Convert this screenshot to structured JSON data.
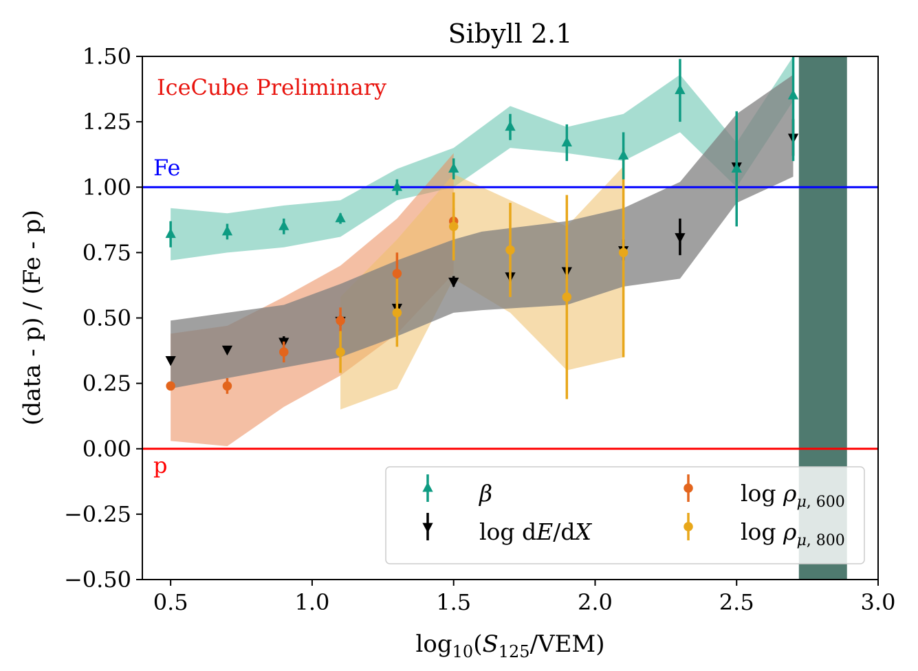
{
  "chart_data": {
    "type": "scatter",
    "title": "Sibyll 2.1",
    "xlabel": "log10(S125/VEM)",
    "ylabel": "(data - p) / (Fe - p)",
    "xlim": [
      0.4,
      3.0
    ],
    "ylim": [
      -0.5,
      1.5
    ],
    "xticks": [
      "0.5",
      "1.0",
      "1.5",
      "2.0",
      "2.5",
      "3.0"
    ],
    "yticks": [
      "1.50",
      "1.25",
      "1.00",
      "0.75",
      "0.50",
      "0.25",
      "0.00",
      "−0.25",
      "−0.50"
    ],
    "ytick_values": [
      1.5,
      1.25,
      1.0,
      0.75,
      0.5,
      0.25,
      0.0,
      -0.25,
      -0.5
    ],
    "xtick_values": [
      0.5,
      1.0,
      1.5,
      2.0,
      2.5,
      3.0
    ],
    "annotation": "IceCube Preliminary",
    "reference_lines": [
      {
        "name": "Fe",
        "label": "Fe",
        "y": 1.0,
        "color": "#0000ff"
      },
      {
        "name": "p",
        "label": "p",
        "y": 0.0,
        "color": "#ff0000"
      }
    ],
    "series": [
      {
        "name": "beta",
        "legend": "β",
        "marker": "triangle-up",
        "color": "#0e9b82",
        "band_color": "#6cc6b3",
        "x": [
          0.5,
          0.7,
          0.9,
          1.1,
          1.3,
          1.5,
          1.7,
          1.9,
          2.1,
          2.3,
          2.5,
          2.7
        ],
        "y": [
          0.82,
          0.83,
          0.85,
          0.88,
          1.0,
          1.07,
          1.23,
          1.17,
          1.12,
          1.37,
          1.07,
          1.35
        ],
        "err": [
          0.05,
          0.03,
          0.03,
          0.02,
          0.03,
          0.04,
          0.05,
          0.07,
          0.09,
          0.12,
          0.22,
          0.25
        ],
        "band_x": [
          0.5,
          0.7,
          0.9,
          1.1,
          1.3,
          1.5,
          1.7,
          1.9,
          2.1,
          2.3,
          2.5,
          2.7
        ],
        "band_low": [
          0.72,
          0.75,
          0.77,
          0.81,
          0.95,
          1.0,
          1.15,
          1.13,
          1.1,
          1.21,
          1.0,
          1.33
        ],
        "band_high": [
          0.92,
          0.9,
          0.93,
          0.95,
          1.07,
          1.15,
          1.31,
          1.23,
          1.28,
          1.43,
          1.17,
          1.5
        ]
      },
      {
        "name": "dEdX",
        "legend": "log dE/dX",
        "marker": "triangle-down",
        "color": "#000000",
        "band_color": "#808080",
        "x": [
          0.5,
          0.7,
          0.9,
          1.1,
          1.3,
          1.5,
          1.7,
          1.9,
          2.1,
          2.3,
          2.5,
          2.7
        ],
        "y": [
          0.34,
          0.38,
          0.41,
          0.49,
          0.54,
          0.64,
          0.66,
          0.68,
          0.76,
          0.81,
          1.08,
          1.19
        ],
        "err": [
          0.01,
          0.01,
          0.02,
          0.02,
          0.02,
          0.02,
          0.02,
          0.03,
          0.04,
          0.07,
          0.12,
          0.07
        ],
        "band_x": [
          0.5,
          0.7,
          0.9,
          1.1,
          1.3,
          1.5,
          1.6,
          1.9,
          2.1,
          2.3,
          2.5,
          2.7
        ],
        "band_low": [
          0.23,
          0.27,
          0.31,
          0.35,
          0.43,
          0.52,
          0.53,
          0.55,
          0.62,
          0.65,
          0.94,
          1.04
        ],
        "band_high": [
          0.49,
          0.52,
          0.55,
          0.63,
          0.72,
          0.8,
          0.83,
          0.87,
          0.92,
          1.02,
          1.28,
          1.43
        ]
      },
      {
        "name": "rho600",
        "legend": "log ρμ,600",
        "marker": "circle",
        "color": "#e3651d",
        "band_color": "#eb8a5a",
        "x": [
          0.5,
          0.7,
          0.9,
          1.1,
          1.3,
          1.5
        ],
        "y": [
          0.24,
          0.24,
          0.37,
          0.49,
          0.67,
          0.87
        ],
        "err": [
          0.01,
          0.03,
          0.04,
          0.05,
          0.08,
          0.05
        ],
        "band_x": [
          0.5,
          0.7,
          0.9,
          1.1,
          1.3,
          1.5
        ],
        "band_low": [
          0.03,
          0.01,
          0.16,
          0.28,
          0.44,
          0.67
        ],
        "band_high": [
          0.44,
          0.47,
          0.58,
          0.7,
          0.88,
          1.13
        ]
      },
      {
        "name": "rho800",
        "legend": "log ρμ,800",
        "marker": "circle",
        "color": "#e8a71a",
        "band_color": "#eec06a",
        "x": [
          1.1,
          1.3,
          1.5,
          1.7,
          1.9,
          2.1
        ],
        "y": [
          0.37,
          0.52,
          0.85,
          0.76,
          0.58,
          0.75
        ],
        "err": [
          0.08,
          0.13,
          0.13,
          0.18,
          0.39,
          0.4
        ],
        "band_x": [
          1.1,
          1.3,
          1.5,
          1.7,
          1.9,
          2.1
        ],
        "band_low": [
          0.15,
          0.23,
          0.65,
          0.52,
          0.3,
          0.35
        ],
        "band_high": [
          0.58,
          0.8,
          1.05,
          0.95,
          0.85,
          1.08
        ]
      }
    ],
    "extra_band": {
      "name": "high-energy-band",
      "color": "#4f7a6f",
      "x": [
        2.72,
        2.75,
        2.8,
        2.85,
        2.89
      ],
      "low": [
        -0.5,
        -0.5,
        -0.5,
        -0.5,
        -0.5
      ],
      "high": [
        1.5,
        1.5,
        1.5,
        1.5,
        1.5
      ]
    },
    "legend_position": "lower-right"
  }
}
